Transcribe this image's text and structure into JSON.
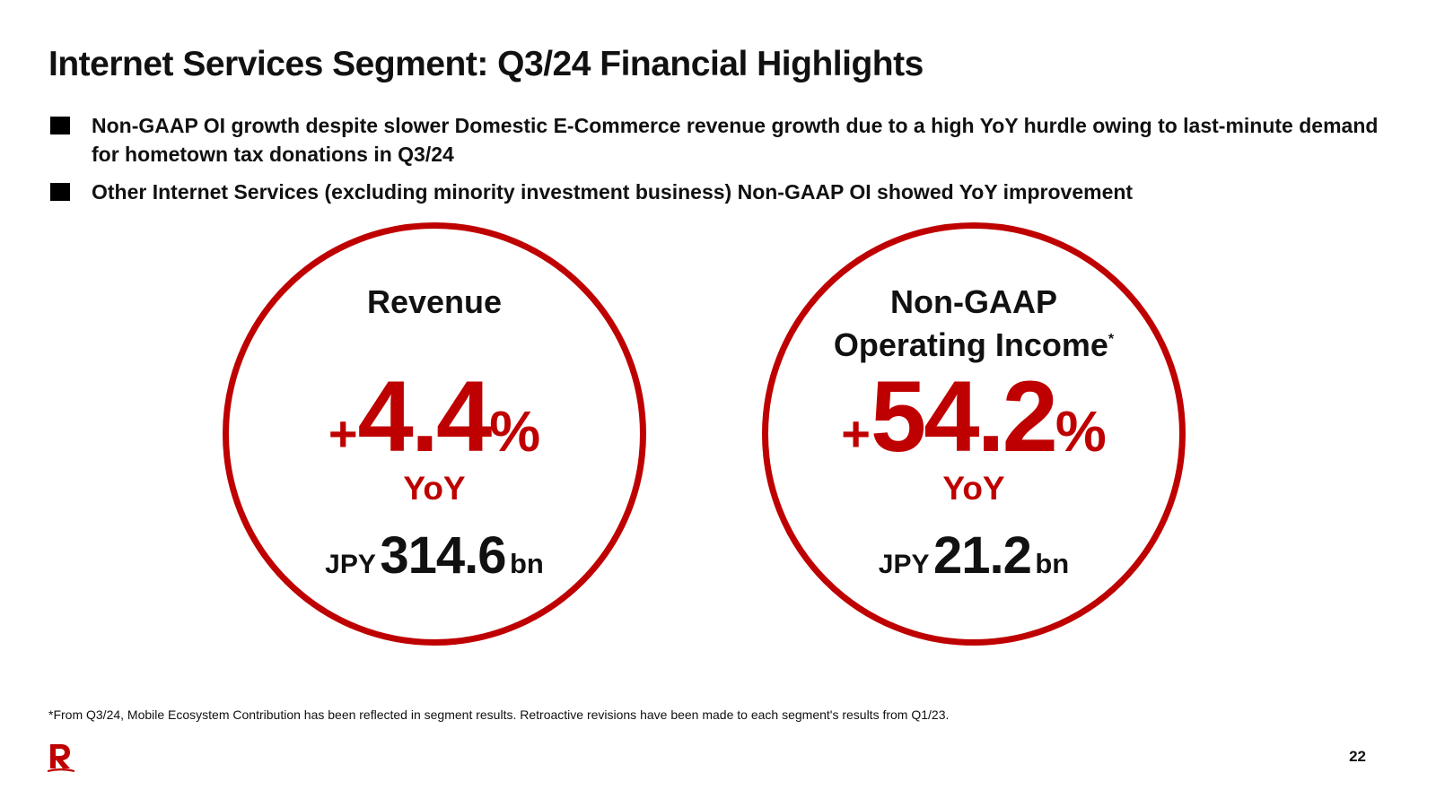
{
  "title": "Internet Services Segment: Q3/24 Financial Highlights",
  "bullets": [
    "Non-GAAP OI growth despite slower Domestic E-Commerce revenue growth due to a high YoY hurdle owing to last-minute demand for hometown tax donations in Q3/24",
    "Other Internet Services (excluding minority investment business) Non-GAAP OI showed YoY improvement"
  ],
  "metrics": [
    {
      "label_line1": "Revenue",
      "label_line2": "",
      "footnote_mark": "",
      "sign": "+",
      "growth": "4.4",
      "unit": "%",
      "period": "YoY",
      "currency": "JPY",
      "amount": "314.6",
      "amount_unit": "bn"
    },
    {
      "label_line1": "Non-GAAP",
      "label_line2": "Operating Income",
      "footnote_mark": "*",
      "sign": "+",
      "growth": "54.2",
      "unit": "%",
      "period": "YoY",
      "currency": "JPY",
      "amount": "21.2",
      "amount_unit": "bn"
    }
  ],
  "footnote": "*From Q3/24, Mobile Ecosystem Contribution has been reflected in segment results. Retroactive revisions have been made to each segment's results from Q1/23.",
  "page_number": "22",
  "colors": {
    "accent": "#bf0000",
    "text": "#111111"
  },
  "logo_icon": "rakuten-r-logo-icon"
}
